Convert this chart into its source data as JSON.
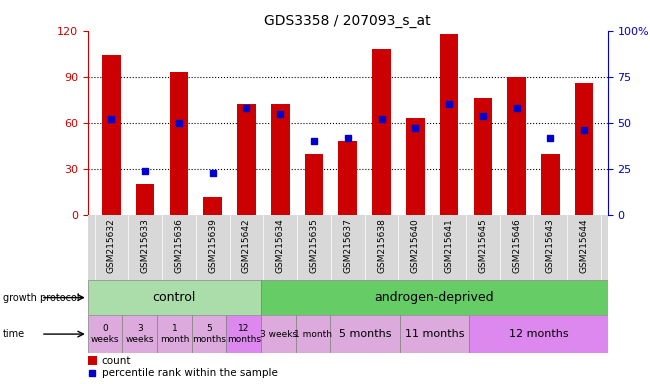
{
  "title": "GDS3358 / 207093_s_at",
  "samples": [
    "GSM215632",
    "GSM215633",
    "GSM215636",
    "GSM215639",
    "GSM215642",
    "GSM215634",
    "GSM215635",
    "GSM215637",
    "GSM215638",
    "GSM215640",
    "GSM215641",
    "GSM215645",
    "GSM215646",
    "GSM215643",
    "GSM215644"
  ],
  "count_values": [
    104,
    20,
    93,
    12,
    72,
    72,
    40,
    48,
    108,
    63,
    118,
    76,
    90,
    40,
    86
  ],
  "percentile_values": [
    52,
    24,
    50,
    23,
    58,
    55,
    40,
    42,
    52,
    47,
    60,
    54,
    58,
    42,
    46
  ],
  "ylim_left": [
    0,
    120
  ],
  "ylim_right": [
    0,
    100
  ],
  "yticks_left": [
    0,
    30,
    60,
    90,
    120
  ],
  "yticks_right": [
    0,
    25,
    50,
    75,
    100
  ],
  "bar_color_count": "#cc0000",
  "bar_color_percentile": "#0000cc",
  "left_axis_color": "#cc0000",
  "right_axis_color": "#0000cc",
  "background_color": "#ffffff",
  "ctrl_color": "#aaddaa",
  "androgen_color": "#66cc66",
  "time_ctrl_color": "#ddaadd",
  "time_androgen_color": "#dd88ee",
  "time_groups": [
    {
      "label": "0\nweeks",
      "start": 0,
      "end": 1,
      "color": "#ddaadd"
    },
    {
      "label": "3\nweeks",
      "start": 1,
      "end": 2,
      "color": "#ddaadd"
    },
    {
      "label": "1\nmonth",
      "start": 2,
      "end": 3,
      "color": "#ddaadd"
    },
    {
      "label": "5\nmonths",
      "start": 3,
      "end": 4,
      "color": "#ddaadd"
    },
    {
      "label": "12\nmonths",
      "start": 4,
      "end": 5,
      "color": "#dd88ee"
    },
    {
      "label": "3 weeks",
      "start": 5,
      "end": 6,
      "color": "#ddaadd"
    },
    {
      "label": "1 month",
      "start": 6,
      "end": 7,
      "color": "#ddaadd"
    },
    {
      "label": "5 months",
      "start": 7,
      "end": 9,
      "color": "#ddaadd"
    },
    {
      "label": "11 months",
      "start": 9,
      "end": 11,
      "color": "#ddaadd"
    },
    {
      "label": "12 months",
      "start": 11,
      "end": 15,
      "color": "#dd88ee"
    }
  ]
}
